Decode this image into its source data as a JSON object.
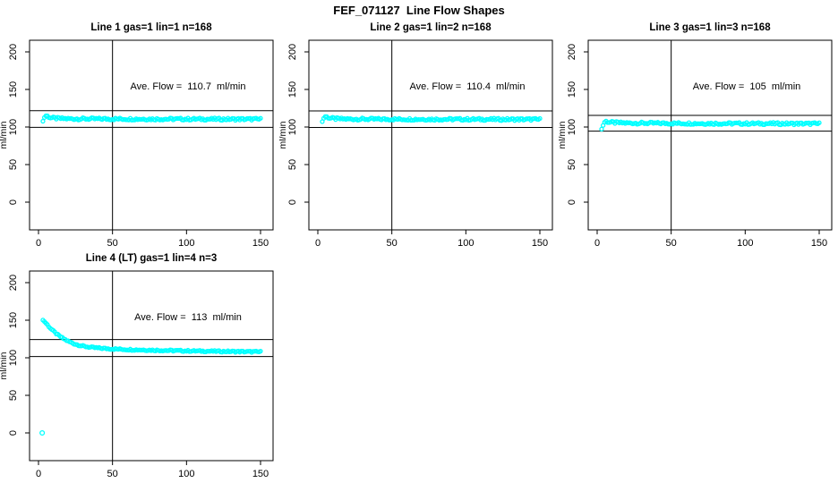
{
  "figure_title": "FEF_071127  Line Flow Shapes",
  "colors": {
    "points": "#00ffff",
    "axis": "#000000",
    "background": "#ffffff"
  },
  "chart_data": [
    {
      "type": "scatter",
      "title": "Line 1 gas=1 lin=1 n=168",
      "annotation": "Ave. Flow =  110.7  ml/min",
      "ave_flow": 110.7,
      "ylabel": "ml/min",
      "xlim": [
        0,
        150
      ],
      "ylim": [
        0,
        200
      ],
      "xticks": [
        0,
        50,
        100,
        150
      ],
      "yticks": [
        0,
        50,
        100,
        150,
        200
      ],
      "vline_x": 50,
      "hlines": [
        121.8,
        99.6
      ],
      "x_start": 3,
      "x_end": 150,
      "x_step": 1,
      "jitter": 1.5,
      "keypoints": [
        [
          3,
          107.5
        ],
        [
          4,
          113
        ],
        [
          5,
          115
        ],
        [
          6,
          114.5
        ],
        [
          8,
          112.5
        ],
        [
          12,
          111.5
        ],
        [
          20,
          111
        ],
        [
          40,
          110.8
        ],
        [
          80,
          110.6
        ],
        [
          150,
          110.4
        ]
      ],
      "outliers": []
    },
    {
      "type": "scatter",
      "title": "Line 2 gas=1 lin=2 n=168",
      "annotation": "Ave. Flow =  110.4  ml/min",
      "ave_flow": 110.4,
      "ylabel": "ml/min",
      "xlim": [
        0,
        150
      ],
      "ylim": [
        0,
        200
      ],
      "xticks": [
        0,
        50,
        100,
        150
      ],
      "yticks": [
        0,
        50,
        100,
        150,
        200
      ],
      "vline_x": 50,
      "hlines": [
        121.4,
        99.4
      ],
      "x_start": 3,
      "x_end": 150,
      "x_step": 1,
      "jitter": 1.5,
      "keypoints": [
        [
          3,
          107
        ],
        [
          4,
          112
        ],
        [
          5,
          114
        ],
        [
          6,
          113.5
        ],
        [
          8,
          112
        ],
        [
          12,
          111
        ],
        [
          20,
          110.6
        ],
        [
          40,
          110.4
        ],
        [
          80,
          110.3
        ],
        [
          150,
          110.1
        ]
      ],
      "outliers": []
    },
    {
      "type": "scatter",
      "title": "Line 3 gas=1 lin=3 n=168",
      "annotation": "Ave. Flow =  105  ml/min",
      "ave_flow": 105,
      "ylabel": "ml/min",
      "xlim": [
        0,
        150
      ],
      "ylim": [
        0,
        200
      ],
      "xticks": [
        0,
        50,
        100,
        150
      ],
      "yticks": [
        0,
        50,
        100,
        150,
        200
      ],
      "vline_x": 50,
      "hlines": [
        115.5,
        94.5
      ],
      "x_start": 3,
      "x_end": 150,
      "x_step": 1,
      "jitter": 1.5,
      "keypoints": [
        [
          3,
          97
        ],
        [
          4,
          102.5
        ],
        [
          5,
          106.5
        ],
        [
          6,
          107.5
        ],
        [
          8,
          106.5
        ],
        [
          12,
          105.8
        ],
        [
          20,
          105.3
        ],
        [
          40,
          105
        ],
        [
          80,
          104.7
        ],
        [
          150,
          104.4
        ]
      ],
      "outliers": []
    },
    {
      "type": "scatter",
      "title": "Line 4 (LT) gas=1 lin=4 n=3",
      "annotation": "Ave. Flow =  113  ml/min",
      "ave_flow": 113,
      "ylabel": "ml/min",
      "xlim": [
        0,
        150
      ],
      "ylim": [
        0,
        200
      ],
      "xticks": [
        0,
        50,
        100,
        150
      ],
      "yticks": [
        0,
        50,
        100,
        150,
        200
      ],
      "vline_x": 50,
      "hlines": [
        124.3,
        101.7
      ],
      "x_start": 3,
      "x_end": 150,
      "x_step": 1,
      "jitter": 1.0,
      "keypoints": [
        [
          3,
          150
        ],
        [
          4,
          148.5
        ],
        [
          6,
          144
        ],
        [
          8,
          139.5
        ],
        [
          10,
          135.5
        ],
        [
          13,
          130.5
        ],
        [
          16,
          126.5
        ],
        [
          20,
          122
        ],
        [
          25,
          118
        ],
        [
          30,
          115.5
        ],
        [
          35,
          114
        ],
        [
          40,
          113
        ],
        [
          50,
          111.8
        ],
        [
          60,
          111
        ],
        [
          80,
          110
        ],
        [
          100,
          109.2
        ],
        [
          125,
          108.5
        ],
        [
          150,
          107.9
        ]
      ],
      "outliers": [
        [
          2.5,
          0
        ]
      ]
    }
  ]
}
